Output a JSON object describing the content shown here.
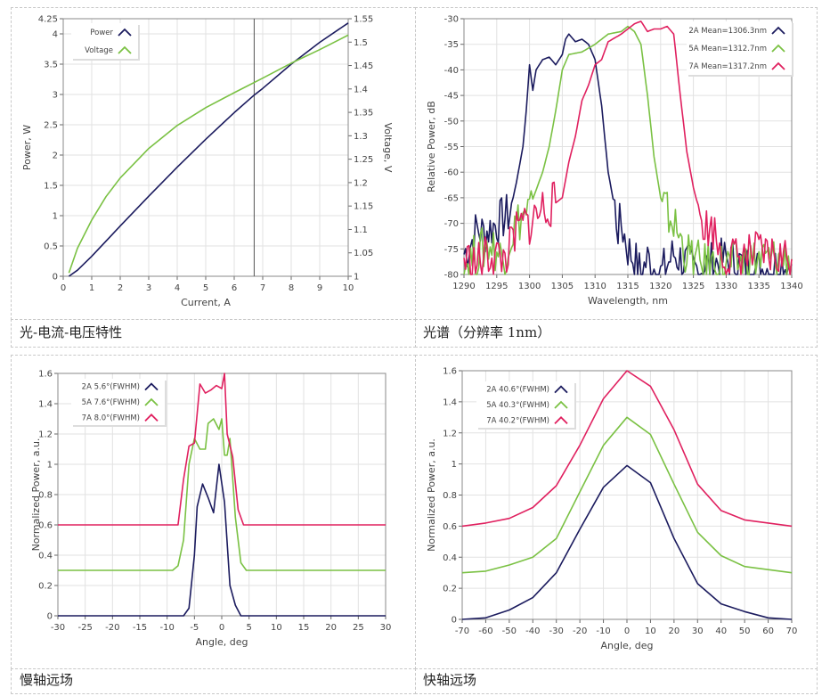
{
  "captions": [
    "光-电流-电压特性",
    "光谱（分辨率 1nm）",
    "慢轴远场",
    "快轴远场"
  ],
  "colors": {
    "navy": "#1b1b5e",
    "green": "#7ac143",
    "pink": "#e0205f"
  },
  "chart_data": [
    {
      "type": "line",
      "title": "光-电流-电压特性",
      "xlabel": "Current, A",
      "ylabel": "Power, W",
      "y2label": "Voltage, V",
      "xlim": [
        0,
        10
      ],
      "ylim": [
        0,
        4.25
      ],
      "y2lim": [
        1,
        1.55
      ],
      "xticks": [
        "0",
        "1",
        "2",
        "3",
        "4",
        "5",
        "6",
        "7",
        "8",
        "9",
        "10"
      ],
      "yticks": [
        "0",
        "0.5",
        "1",
        "1.5",
        "2",
        "2.5",
        "3",
        "3.5",
        "4",
        "4.25"
      ],
      "y2ticks": [
        "1",
        "1.05",
        "1.1",
        "1.15",
        "1.2",
        "1.25",
        "1.3",
        "1.35",
        "1.4",
        "1.45",
        "1.5",
        "1.55"
      ],
      "grid": true,
      "legend": "top-left",
      "cursor_x": 6.7,
      "series": [
        {
          "name": "Power",
          "color": "#1b1b5e",
          "axis": "left",
          "points": [
            [
              0.2,
              0
            ],
            [
              0.5,
              0.1
            ],
            [
              1,
              0.33
            ],
            [
              2,
              0.83
            ],
            [
              3,
              1.32
            ],
            [
              4,
              1.8
            ],
            [
              5,
              2.26
            ],
            [
              6,
              2.7
            ],
            [
              6.7,
              2.99
            ],
            [
              7,
              3.1
            ],
            [
              8,
              3.5
            ],
            [
              9,
              3.86
            ],
            [
              10,
              4.18
            ]
          ]
        },
        {
          "name": "Voltage",
          "color": "#7ac143",
          "axis": "right",
          "points": [
            [
              0.2,
              1.007
            ],
            [
              0.5,
              1.06
            ],
            [
              1,
              1.12
            ],
            [
              1.5,
              1.17
            ],
            [
              2,
              1.21
            ],
            [
              3,
              1.273
            ],
            [
              4,
              1.322
            ],
            [
              5,
              1.36
            ],
            [
              6,
              1.392
            ],
            [
              7,
              1.423
            ],
            [
              8,
              1.455
            ],
            [
              9,
              1.484
            ],
            [
              10,
              1.515
            ]
          ]
        }
      ]
    },
    {
      "type": "line",
      "title": "光谱（分辨率 1nm）",
      "xlabel": "Wavelength, nm",
      "ylabel": "Relative Power, dB",
      "xlim": [
        1290,
        1340
      ],
      "ylim": [
        -80,
        -30
      ],
      "xticks": [
        "1290",
        "1295",
        "1300",
        "1305",
        "1310",
        "1315",
        "1320",
        "1325",
        "1330",
        "1335",
        "1340"
      ],
      "yticks": [
        "-80",
        "-75",
        "-70",
        "-65",
        "-60",
        "-55",
        "-50",
        "-45",
        "-40",
        "-35",
        "-30"
      ],
      "grid": true,
      "legend": "top-right",
      "noisy": true,
      "series": [
        {
          "name": "2A Mean=1306.3nm",
          "color": "#1b1b5e",
          "points": [
            [
              1290,
              -76
            ],
            [
              1291,
              -74
            ],
            [
              1292,
              -71
            ],
            [
              1293,
              -72
            ],
            [
              1294,
              -71
            ],
            [
              1295,
              -70
            ],
            [
              1296,
              -69
            ],
            [
              1297,
              -68
            ],
            [
              1298,
              -62
            ],
            [
              1299,
              -55
            ],
            [
              1299.5,
              -48
            ],
            [
              1300,
              -39
            ],
            [
              1300.5,
              -44
            ],
            [
              1301,
              -40
            ],
            [
              1302,
              -38
            ],
            [
              1303,
              -37.5
            ],
            [
              1304,
              -39
            ],
            [
              1305,
              -37
            ],
            [
              1305.5,
              -34
            ],
            [
              1306,
              -33
            ],
            [
              1307,
              -34.5
            ],
            [
              1308,
              -34
            ],
            [
              1309,
              -35
            ],
            [
              1310,
              -38
            ],
            [
              1311,
              -47
            ],
            [
              1312,
              -60
            ],
            [
              1313,
              -67
            ],
            [
              1313.5,
              -71
            ],
            [
              1314,
              -70
            ],
            [
              1315,
              -75
            ],
            [
              1316,
              -77
            ],
            [
              1317,
              -80
            ],
            [
              1318,
              -77
            ],
            [
              1320,
              -80
            ],
            [
              1322,
              -76
            ],
            [
              1325,
              -79
            ],
            [
              1330,
              -77
            ],
            [
              1335,
              -79
            ],
            [
              1340,
              -78
            ]
          ]
        },
        {
          "name": "5A Mean=1312.7nm",
          "color": "#7ac143",
          "points": [
            [
              1290,
              -78
            ],
            [
              1292,
              -76
            ],
            [
              1294,
              -74
            ],
            [
              1296,
              -77
            ],
            [
              1297,
              -73
            ],
            [
              1298,
              -70
            ],
            [
              1300,
              -67
            ],
            [
              1302,
              -60
            ],
            [
              1303,
              -55
            ],
            [
              1304,
              -48
            ],
            [
              1305,
              -40
            ],
            [
              1306,
              -37
            ],
            [
              1308,
              -36.5
            ],
            [
              1310,
              -35
            ],
            [
              1312,
              -33
            ],
            [
              1314,
              -32.5
            ],
            [
              1315,
              -31.5
            ],
            [
              1316,
              -32.5
            ],
            [
              1317,
              -35
            ],
            [
              1318,
              -45
            ],
            [
              1319,
              -57
            ],
            [
              1320,
              -65
            ],
            [
              1321,
              -68
            ],
            [
              1322,
              -70
            ],
            [
              1323,
              -73
            ],
            [
              1324,
              -76
            ],
            [
              1326,
              -78
            ],
            [
              1330,
              -78
            ],
            [
              1335,
              -77
            ],
            [
              1340,
              -77
            ]
          ]
        },
        {
          "name": "7A Mean=1317.2nm",
          "color": "#e0205f",
          "points": [
            [
              1290,
              -77
            ],
            [
              1292,
              -78
            ],
            [
              1294,
              -76
            ],
            [
              1296,
              -77
            ],
            [
              1297,
              -75
            ],
            [
              1298,
              -72
            ],
            [
              1299,
              -70
            ],
            [
              1300,
              -70
            ],
            [
              1302,
              -67
            ],
            [
              1304,
              -66
            ],
            [
              1305,
              -65
            ],
            [
              1306,
              -58
            ],
            [
              1307,
              -53
            ],
            [
              1308,
              -46
            ],
            [
              1309,
              -43
            ],
            [
              1310,
              -39
            ],
            [
              1311,
              -38
            ],
            [
              1312,
              -34.5
            ],
            [
              1314,
              -33
            ],
            [
              1315,
              -32
            ],
            [
              1316,
              -31
            ],
            [
              1317,
              -30.5
            ],
            [
              1318,
              -32.5
            ],
            [
              1319,
              -32
            ],
            [
              1320,
              -32
            ],
            [
              1321,
              -31.5
            ],
            [
              1322,
              -33
            ],
            [
              1323,
              -45
            ],
            [
              1324,
              -56
            ],
            [
              1325,
              -63
            ],
            [
              1326,
              -68
            ],
            [
              1327,
              -71
            ],
            [
              1328,
              -71
            ],
            [
              1329,
              -75
            ],
            [
              1330,
              -77
            ],
            [
              1335,
              -76
            ],
            [
              1340,
              -77
            ]
          ]
        }
      ]
    },
    {
      "type": "line",
      "title": "慢轴远场",
      "xlabel": "Angle, deg",
      "ylabel": "Normalized Power, a.u.",
      "xlim": [
        -30,
        30
      ],
      "ylim": [
        0,
        1.6
      ],
      "xticks": [
        "-30",
        "-25",
        "-20",
        "-15",
        "-10",
        "-5",
        "0",
        "5",
        "10",
        "15",
        "20",
        "25",
        "30"
      ],
      "yticks": [
        "0",
        "0.2",
        "0.4",
        "0.6",
        "0.8",
        "1",
        "1.2",
        "1.4",
        "1.6"
      ],
      "grid": true,
      "legend": "top-left",
      "series": [
        {
          "name": "2A 5.6°(FWHM)",
          "color": "#1b1b5e",
          "points": [
            [
              -30,
              0
            ],
            [
              -7,
              0
            ],
            [
              -6,
              0.05
            ],
            [
              -5,
              0.4
            ],
            [
              -4.5,
              0.72
            ],
            [
              -3.5,
              0.87
            ],
            [
              -2.5,
              0.78
            ],
            [
              -1.5,
              0.68
            ],
            [
              -0.5,
              1.0
            ],
            [
              0.5,
              0.75
            ],
            [
              1.5,
              0.2
            ],
            [
              2.5,
              0.07
            ],
            [
              3.5,
              0
            ],
            [
              30,
              0
            ]
          ]
        },
        {
          "name": "5A 7.6°(FWHM)",
          "color": "#7ac143",
          "points": [
            [
              -30,
              0.3
            ],
            [
              -9,
              0.3
            ],
            [
              -8,
              0.33
            ],
            [
              -7,
              0.5
            ],
            [
              -6,
              1.0
            ],
            [
              -5,
              1.17
            ],
            [
              -4,
              1.1
            ],
            [
              -3,
              1.1
            ],
            [
              -2.5,
              1.27
            ],
            [
              -1.5,
              1.3
            ],
            [
              -0.5,
              1.23
            ],
            [
              0,
              1.3
            ],
            [
              0.5,
              1.06
            ],
            [
              1,
              1.06
            ],
            [
              1.5,
              1.17
            ],
            [
              2.5,
              0.65
            ],
            [
              3.5,
              0.35
            ],
            [
              4.5,
              0.3
            ],
            [
              30,
              0.3
            ]
          ]
        },
        {
          "name": "7A 8.0°(FWHM)",
          "color": "#e0205f",
          "points": [
            [
              -30,
              0.6
            ],
            [
              -8,
              0.6
            ],
            [
              -7,
              0.9
            ],
            [
              -6,
              1.12
            ],
            [
              -5,
              1.14
            ],
            [
              -4,
              1.53
            ],
            [
              -3,
              1.47
            ],
            [
              -2,
              1.49
            ],
            [
              -1,
              1.52
            ],
            [
              0,
              1.5
            ],
            [
              0.5,
              1.6
            ],
            [
              1,
              1.2
            ],
            [
              2,
              1.05
            ],
            [
              3,
              0.7
            ],
            [
              4,
              0.6
            ],
            [
              30,
              0.6
            ]
          ]
        }
      ]
    },
    {
      "type": "line",
      "title": "快轴远场",
      "xlabel": "Angle, deg",
      "ylabel": "Normalized Power, a.u.",
      "xlim": [
        -70,
        70
      ],
      "ylim": [
        0,
        1.6
      ],
      "xticks": [
        "-70",
        "-60",
        "-50",
        "-40",
        "-30",
        "-20",
        "-10",
        "0",
        "10",
        "20",
        "30",
        "40",
        "50",
        "60",
        "70"
      ],
      "yticks": [
        "0",
        "0.2",
        "0.4",
        "0.6",
        "0.8",
        "1",
        "1.2",
        "1.4",
        "1.6"
      ],
      "grid": true,
      "legend": "top-left",
      "series": [
        {
          "name": "2A 40.6°(FWHM)",
          "color": "#1b1b5e",
          "points": [
            [
              -70,
              0
            ],
            [
              -60,
              0.01
            ],
            [
              -50,
              0.06
            ],
            [
              -40,
              0.14
            ],
            [
              -30,
              0.3
            ],
            [
              -20,
              0.58
            ],
            [
              -10,
              0.85
            ],
            [
              0,
              0.99
            ],
            [
              10,
              0.88
            ],
            [
              20,
              0.52
            ],
            [
              30,
              0.23
            ],
            [
              40,
              0.1
            ],
            [
              50,
              0.05
            ],
            [
              60,
              0.01
            ],
            [
              70,
              0
            ]
          ]
        },
        {
          "name": "5A 40.3°(FWHM)",
          "color": "#7ac143",
          "points": [
            [
              -70,
              0.3
            ],
            [
              -60,
              0.31
            ],
            [
              -50,
              0.35
            ],
            [
              -40,
              0.4
            ],
            [
              -30,
              0.52
            ],
            [
              -20,
              0.82
            ],
            [
              -10,
              1.12
            ],
            [
              0,
              1.3
            ],
            [
              10,
              1.19
            ],
            [
              20,
              0.87
            ],
            [
              30,
              0.56
            ],
            [
              40,
              0.41
            ],
            [
              50,
              0.34
            ],
            [
              60,
              0.32
            ],
            [
              70,
              0.3
            ]
          ]
        },
        {
          "name": "7A 40.2°(FWHM)",
          "color": "#e0205f",
          "points": [
            [
              -70,
              0.6
            ],
            [
              -60,
              0.62
            ],
            [
              -50,
              0.65
            ],
            [
              -40,
              0.72
            ],
            [
              -30,
              0.86
            ],
            [
              -20,
              1.12
            ],
            [
              -10,
              1.42
            ],
            [
              0,
              1.6
            ],
            [
              10,
              1.5
            ],
            [
              20,
              1.22
            ],
            [
              30,
              0.87
            ],
            [
              40,
              0.7
            ],
            [
              50,
              0.64
            ],
            [
              60,
              0.62
            ],
            [
              70,
              0.6
            ]
          ]
        }
      ]
    }
  ]
}
